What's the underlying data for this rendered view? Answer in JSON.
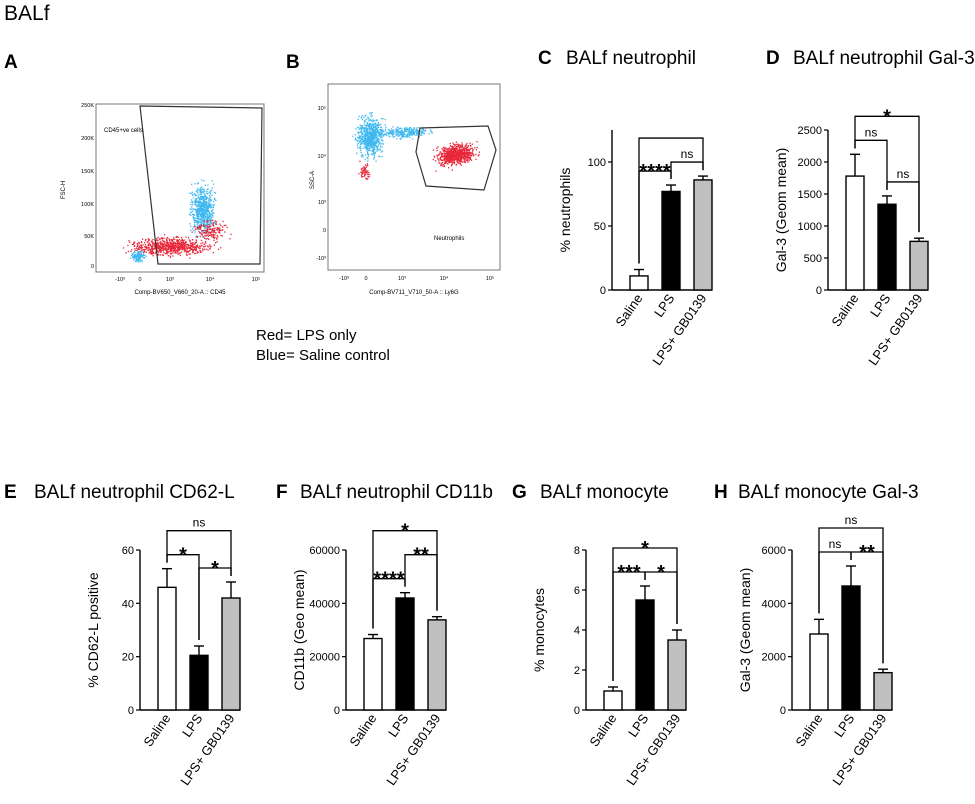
{
  "figure_title": "BALf",
  "legend": {
    "red": "Red= LPS only",
    "blue": "Blue= Saline control"
  },
  "colors": {
    "lps_red": "#e8283a",
    "saline_blue": "#3fb8ee",
    "lps_bar": "#000000",
    "gb_bar": "#c0c0c0",
    "saline_bar": "#ffffff"
  },
  "flow_panels": [
    {
      "letter": "A",
      "gate_label": "CD45+ve cells",
      "xlabel": "Comp-BV650_V660_20-A :: CD45",
      "ylabel": "FSC-H",
      "y_ticks": [
        "250K",
        "200K",
        "150K",
        "100K",
        "50K",
        "0"
      ],
      "x_ticks": [
        "-10³",
        "0",
        "10³",
        "10⁴",
        "10⁵"
      ]
    },
    {
      "letter": "B",
      "gate_label": "Neutrophils",
      "xlabel": "Comp-BV711_V710_50-A :: Ly6G",
      "ylabel": "SSC-A",
      "y_ticks": [
        "10⁵",
        "10⁴",
        "10³",
        "0",
        "-10³"
      ],
      "x_ticks": [
        "-10³",
        "0",
        "10³",
        "10⁴",
        "10⁵"
      ]
    }
  ],
  "chart_data": [
    {
      "letter": "C",
      "title": "BALf neutrophil",
      "type": "bar",
      "categories": [
        "Saline",
        "LPS",
        "LPS+ GB0139"
      ],
      "values": [
        11,
        77,
        86
      ],
      "errors": [
        5,
        5,
        3
      ],
      "ylabel": "% neutrophils",
      "ylim": [
        0,
        125
      ],
      "yticks": [
        0,
        50,
        100
      ],
      "comparisons": [
        {
          "from": 0,
          "to": 1,
          "label": "****",
          "level": 1
        },
        {
          "from": 1,
          "to": 2,
          "label": "ns",
          "level": 1
        },
        {
          "from": 0,
          "to": 2,
          "label": "",
          "level": 2
        }
      ]
    },
    {
      "letter": "D",
      "title": "BALf neutrophil Gal-3",
      "type": "bar",
      "categories": [
        "Saline",
        "LPS",
        "LPS+ GB0139"
      ],
      "values": [
        1780,
        1340,
        760
      ],
      "errors": [
        340,
        130,
        50
      ],
      "ylabel": "Gal-3 (Geom mean)",
      "ylim": [
        0,
        2500
      ],
      "yticks": [
        0,
        500,
        1000,
        1500,
        2000,
        2500
      ],
      "comparisons": [
        {
          "from": 0,
          "to": 1,
          "label": "ns",
          "level": 1
        },
        {
          "from": 1,
          "to": 2,
          "label": "ns",
          "level": 1
        },
        {
          "from": 0,
          "to": 2,
          "label": "*",
          "level": 2
        }
      ]
    },
    {
      "letter": "E",
      "title": "BALf neutrophil CD62-L",
      "type": "bar",
      "categories": [
        "Saline",
        "LPS",
        "LPS+ GB0139"
      ],
      "values": [
        46,
        20.5,
        42
      ],
      "errors": [
        7,
        3.5,
        6
      ],
      "ylabel": "% CD62-L positive",
      "ylim": [
        0,
        60
      ],
      "yticks": [
        0,
        20,
        40,
        60
      ],
      "comparisons": [
        {
          "from": 0,
          "to": 1,
          "label": "*",
          "level": 1
        },
        {
          "from": 1,
          "to": 2,
          "label": "*",
          "level": 1
        },
        {
          "from": 0,
          "to": 2,
          "label": "ns",
          "level": 2
        }
      ]
    },
    {
      "letter": "F",
      "title": "BALf neutrophil CD11b",
      "type": "bar",
      "categories": [
        "Saline",
        "LPS",
        "LPS+ GB0139"
      ],
      "values": [
        26800,
        42000,
        33800
      ],
      "errors": [
        1500,
        2000,
        1200
      ],
      "ylabel": "CD11b (Geo mean)",
      "ylim": [
        0,
        60000
      ],
      "yticks": [
        0,
        20000,
        40000,
        60000
      ],
      "comparisons": [
        {
          "from": 0,
          "to": 1,
          "label": "****",
          "level": 1
        },
        {
          "from": 1,
          "to": 2,
          "label": "**",
          "level": 2
        },
        {
          "from": 0,
          "to": 2,
          "label": "*",
          "level": 3
        }
      ]
    },
    {
      "letter": "G",
      "title": "BALf monocyte",
      "type": "bar",
      "categories": [
        "Saline",
        "LPS",
        "LPS+ GB0139"
      ],
      "values": [
        0.95,
        5.5,
        3.5
      ],
      "errors": [
        0.2,
        0.7,
        0.5
      ],
      "ylabel": "% monocytes",
      "ylim": [
        0,
        8
      ],
      "yticks": [
        0,
        2,
        4,
        6,
        8
      ],
      "comparisons": [
        {
          "from": 0,
          "to": 1,
          "label": "***",
          "level": 1
        },
        {
          "from": 1,
          "to": 2,
          "label": "*",
          "level": 1
        },
        {
          "from": 0,
          "to": 2,
          "label": "*",
          "level": 2
        }
      ]
    },
    {
      "letter": "H",
      "title": "BALf monocyte Gal-3",
      "type": "bar",
      "categories": [
        "Saline",
        "LPS",
        "LPS+ GB0139"
      ],
      "values": [
        2850,
        4650,
        1400
      ],
      "errors": [
        550,
        750,
        130
      ],
      "ylabel": "Gal-3 (Geom mean)",
      "ylim": [
        0,
        6000
      ],
      "yticks": [
        0,
        2000,
        4000,
        6000
      ],
      "comparisons": [
        {
          "from": 0,
          "to": 1,
          "label": "ns",
          "level": 1
        },
        {
          "from": 1,
          "to": 2,
          "label": "**",
          "level": 1
        },
        {
          "from": 0,
          "to": 2,
          "label": "ns",
          "level": 2
        }
      ]
    }
  ]
}
